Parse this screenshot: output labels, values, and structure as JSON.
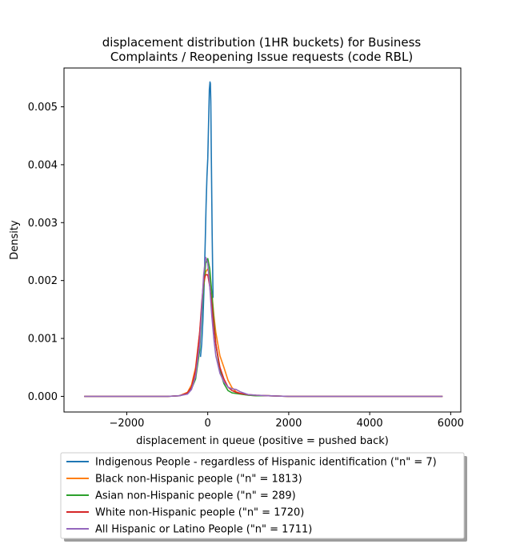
{
  "chart_data": {
    "type": "line",
    "title": "displacement distribution (1HR buckets) for Business Complaints / Reopening Issue requests (code RBL)",
    "title_lines": [
      "displacement distribution (1HR buckets) for Business",
      "Complaints / Reopening Issue requests (code RBL)"
    ],
    "xlabel": "displacement in queue (positive = pushed back)",
    "ylabel": "Density",
    "xlim": [
      -3550,
      6250
    ],
    "ylim": [
      -0.00027,
      0.00567
    ],
    "x_ticks": [
      -2000,
      0,
      2000,
      4000,
      6000
    ],
    "x_tick_labels": [
      "−2000",
      "0",
      "2000",
      "4000",
      "6000"
    ],
    "y_ticks": [
      0,
      0.001,
      0.002,
      0.003,
      0.004,
      0.005
    ],
    "y_tick_labels": [
      "0.000",
      "0.001",
      "0.002",
      "0.003",
      "0.004",
      "0.005"
    ],
    "grid": false,
    "legend_position": "below",
    "series": [
      {
        "name": "Indigenous People - regardless of Hispanic identification (\"n\" = 7)",
        "color": "#1f77b4",
        "x": [
          -180,
          -150,
          -120,
          -90,
          -60,
          -40,
          -20,
          0,
          20,
          40,
          55,
          65,
          75,
          90,
          110,
          130
        ],
        "y": [
          0.00068,
          0.0009,
          0.0013,
          0.0019,
          0.0027,
          0.0033,
          0.0038,
          0.0041,
          0.0047,
          0.0053,
          0.00543,
          0.0054,
          0.0051,
          0.0041,
          0.0028,
          0.0017
        ]
      },
      {
        "name": "Black non-Hispanic people (\"n\" = 1813)",
        "color": "#ff7f0e",
        "x": [
          -3050,
          -2000,
          -1000,
          -700,
          -500,
          -400,
          -300,
          -200,
          -150,
          -100,
          -50,
          0,
          50,
          100,
          150,
          200,
          300,
          400,
          500,
          600,
          700,
          800,
          1000,
          1200,
          1500,
          2000,
          3000,
          4000,
          5000,
          5800
        ],
        "y": [
          0,
          0,
          0,
          1e-05,
          7e-05,
          0.0002,
          0.0005,
          0.0011,
          0.0015,
          0.0019,
          0.00215,
          0.0022,
          0.0021,
          0.0018,
          0.0014,
          0.0011,
          0.0007,
          0.0005,
          0.00028,
          0.00015,
          8e-05,
          5e-05,
          2e-05,
          1e-05,
          1e-05,
          0,
          0,
          0,
          0,
          0
        ]
      },
      {
        "name": "Asian non-Hispanic people (\"n\" = 289)",
        "color": "#2ca02c",
        "x": [
          -3050,
          -2000,
          -1000,
          -700,
          -500,
          -400,
          -300,
          -200,
          -150,
          -100,
          -50,
          0,
          50,
          100,
          150,
          200,
          300,
          400,
          500,
          600,
          700,
          800,
          1000,
          1200,
          1500,
          2000,
          3000,
          4000,
          5000,
          5800
        ],
        "y": [
          0,
          0,
          0,
          1e-05,
          5e-05,
          0.00013,
          0.0003,
          0.0008,
          0.0014,
          0.0019,
          0.0023,
          0.00238,
          0.0022,
          0.0018,
          0.0013,
          0.0009,
          0.00045,
          0.00022,
          0.0001,
          6e-05,
          5e-05,
          4e-05,
          2e-05,
          1e-05,
          1e-05,
          0,
          0,
          0,
          0,
          0
        ]
      },
      {
        "name": "White non-Hispanic people (\"n\" = 1720)",
        "color": "#d62728",
        "x": [
          -3050,
          -2000,
          -1000,
          -700,
          -500,
          -400,
          -300,
          -200,
          -150,
          -100,
          -50,
          0,
          50,
          100,
          150,
          200,
          300,
          400,
          500,
          600,
          700,
          800,
          1000,
          1200,
          1500,
          2000,
          3000,
          4000,
          5000,
          5800
        ],
        "y": [
          0,
          0,
          0,
          1e-05,
          6e-05,
          0.00016,
          0.00045,
          0.0011,
          0.0016,
          0.002,
          0.0021,
          0.0021,
          0.0019,
          0.0016,
          0.0012,
          0.0009,
          0.0005,
          0.0003,
          0.00016,
          0.0001,
          7e-05,
          5e-05,
          3e-05,
          2e-05,
          1e-05,
          0,
          0,
          0,
          0,
          0
        ]
      },
      {
        "name": "All Hispanic or Latino People (\"n\" = 1711)",
        "color": "#9467bd",
        "x": [
          -3050,
          -2000,
          -1000,
          -700,
          -500,
          -400,
          -300,
          -200,
          -150,
          -100,
          -50,
          0,
          50,
          100,
          150,
          200,
          300,
          400,
          500,
          600,
          700,
          800,
          1000,
          1200,
          1500,
          2000,
          3000,
          4000,
          5000,
          5800
        ],
        "y": [
          0,
          0,
          0,
          1e-05,
          4e-05,
          0.00012,
          0.00035,
          0.0009,
          0.0015,
          0.0021,
          0.0024,
          0.0023,
          0.0019,
          0.0014,
          0.001,
          0.0007,
          0.0004,
          0.00025,
          0.00016,
          0.00013,
          0.00012,
          8e-05,
          3e-05,
          2e-05,
          1e-05,
          0,
          0,
          0,
          0,
          0
        ]
      }
    ]
  }
}
